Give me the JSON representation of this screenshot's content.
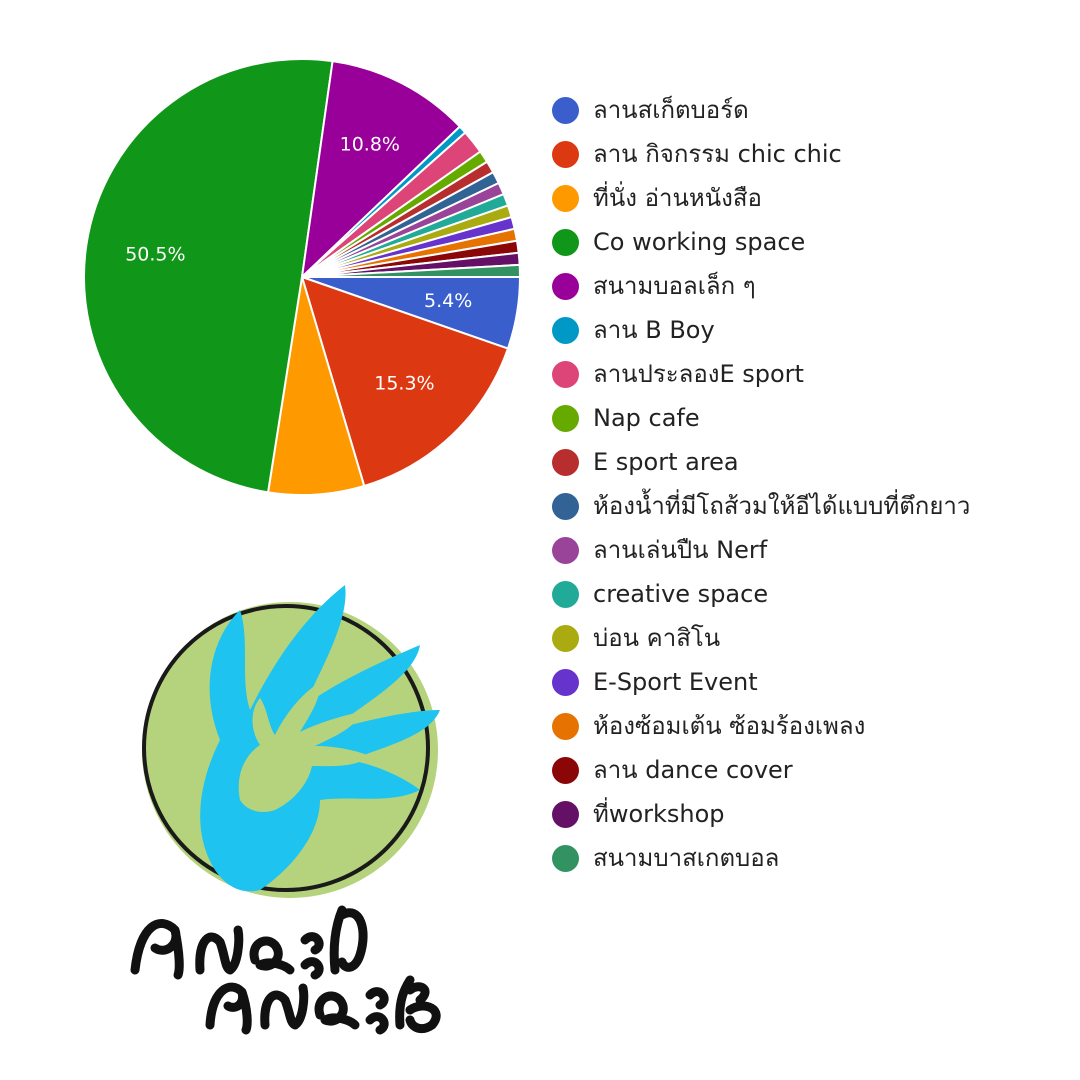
{
  "chart_data": {
    "type": "pie",
    "slices": [
      {
        "name": "ลานสเก็ตบอร์ด",
        "value": 5.4,
        "label": "5.4%",
        "color": "#3a5fcd"
      },
      {
        "name": "ลาน กิจกรรม chic chic",
        "value": 15.3,
        "label": "15.3%",
        "color": "#dc3912"
      },
      {
        "name": "ที่นั่ง อ่านหนังสือ",
        "value": 7.2,
        "label": "",
        "color": "#ff9900"
      },
      {
        "name": "Co working space",
        "value": 50.5,
        "label": "50.5%",
        "color": "#109618"
      },
      {
        "name": "สนามบอลเล็ก ๆ",
        "value": 10.8,
        "label": "10.8%",
        "color": "#990099"
      },
      {
        "name": "ลาน B Boy",
        "value": 0.6,
        "label": "",
        "color": "#0099c6"
      },
      {
        "name": "ลานประลองE sport",
        "value": 1.8,
        "label": "",
        "color": "#dd4477"
      },
      {
        "name": "Nap cafe",
        "value": 0.9,
        "label": "",
        "color": "#66aa00"
      },
      {
        "name": "E sport area",
        "value": 0.9,
        "label": "",
        "color": "#b82e2e"
      },
      {
        "name": "ห้องน้ำที่มีโถส้วมให้อีได้แบบที่ตึกยาว",
        "value": 0.9,
        "label": "",
        "color": "#316395"
      },
      {
        "name": "ลานเล่นปืน Nerf",
        "value": 0.9,
        "label": "",
        "color": "#994499"
      },
      {
        "name": "creative space",
        "value": 0.9,
        "label": "",
        "color": "#22aa99"
      },
      {
        "name": "บ่อน คาสิโน",
        "value": 0.9,
        "label": "",
        "color": "#aaaa11"
      },
      {
        "name": "E-Sport Event",
        "value": 0.9,
        "label": "",
        "color": "#6633cc"
      },
      {
        "name": "ห้องซ้อมเต้น ซ้อมร้องเพลง",
        "value": 0.9,
        "label": "",
        "color": "#e67300"
      },
      {
        "name": "ลาน dance cover",
        "value": 0.9,
        "label": "",
        "color": "#8b0707"
      },
      {
        "name": "ที่workshop",
        "value": 0.9,
        "label": "",
        "color": "#651067"
      },
      {
        "name": "สนามบาสเกตบอล",
        "value": 0.9,
        "label": "",
        "color": "#329262"
      }
    ],
    "legend_position": "right"
  },
  "logo": {
    "text": "คนละไม้คนละมือ",
    "colors": {
      "circle": "#b5d37d",
      "hand": "#1ec3f0",
      "ring": "#1a1a1a"
    }
  }
}
